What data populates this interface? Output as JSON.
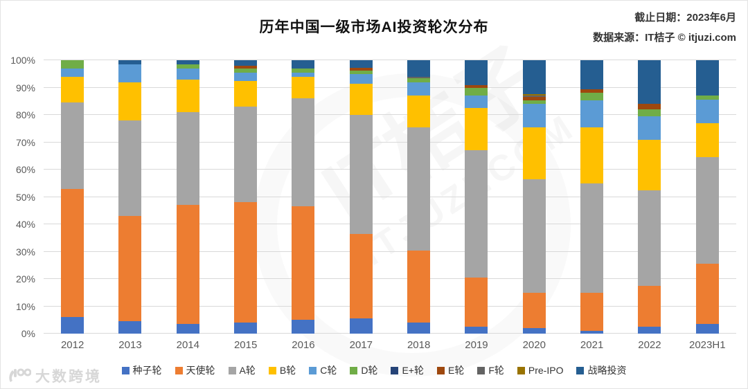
{
  "header": {
    "title": "历年中国一级市场AI投资轮次分布",
    "meta_line1": "截止日期：2023年6月",
    "meta_line2": "数据来源：IT桔子 © itjuzi.com"
  },
  "watermark": {
    "center_line1": "IT桔子",
    "center_line2": "ITJUZI.COM",
    "bottom_left_brand": "大数跨境"
  },
  "chart_data": {
    "type": "bar",
    "subtype": "stacked-100-percent",
    "title": "历年中国一级市场AI投资轮次分布",
    "xlabel": "",
    "ylabel": "",
    "ylim": [
      0,
      100
    ],
    "grid": true,
    "legend_position": "bottom",
    "y_ticks": [
      "0%",
      "10%",
      "20%",
      "30%",
      "40%",
      "50%",
      "60%",
      "70%",
      "80%",
      "90%",
      "100%"
    ],
    "categories": [
      "2012",
      "2013",
      "2014",
      "2015",
      "2016",
      "2017",
      "2018",
      "2019",
      "2020",
      "2021",
      "2022",
      "2023H1"
    ],
    "series": [
      {
        "name": "种子轮",
        "color": "#4472C4",
        "values": [
          6,
          4.5,
          3.5,
          4,
          5,
          5.5,
          4,
          2.5,
          2,
          1,
          2.5,
          3.5
        ]
      },
      {
        "name": "天使轮",
        "color": "#ED7D31",
        "values": [
          47,
          38.5,
          43.5,
          44,
          41.5,
          31,
          26.5,
          18,
          13,
          14,
          15,
          22
        ]
      },
      {
        "name": "A轮",
        "color": "#A5A5A5",
        "values": [
          31.5,
          35,
          34,
          35,
          39.5,
          43.5,
          45,
          46.5,
          41.5,
          40,
          35,
          39
        ]
      },
      {
        "name": "B轮",
        "color": "#FFC000",
        "values": [
          9.5,
          14,
          12,
          9.5,
          8,
          11.5,
          11.5,
          15.5,
          19,
          20.5,
          18.5,
          12.5
        ]
      },
      {
        "name": "C轮",
        "color": "#5B9BD5",
        "values": [
          3,
          6.5,
          4,
          3,
          1.5,
          3.5,
          5,
          4.5,
          8.5,
          9.8,
          8.5,
          8.5
        ]
      },
      {
        "name": "D轮",
        "color": "#70AD47",
        "values": [
          3,
          0,
          1.5,
          1.5,
          1.5,
          1.2,
          1.3,
          3,
          1.3,
          2.9,
          2.5,
          1.5
        ]
      },
      {
        "name": "E+轮",
        "color": "#264478",
        "values": [
          0,
          0,
          0,
          0,
          0,
          0,
          0,
          0,
          0,
          0,
          0,
          0
        ]
      },
      {
        "name": "E轮",
        "color": "#9E480E",
        "values": [
          0,
          0,
          0,
          1,
          0,
          1,
          0,
          1,
          1.4,
          1.3,
          2,
          0
        ]
      },
      {
        "name": "F轮",
        "color": "#636363",
        "values": [
          0,
          0,
          0,
          0,
          0,
          0,
          0.7,
          0,
          0.4,
          0,
          0,
          0
        ]
      },
      {
        "name": "Pre-IPO",
        "color": "#997300",
        "values": [
          0,
          0,
          0,
          0,
          0,
          0,
          0,
          0,
          0.4,
          0,
          0,
          0
        ]
      },
      {
        "name": "战略投资",
        "color": "#255E91",
        "values": [
          0,
          1.5,
          1.5,
          2,
          3,
          2.8,
          6,
          9,
          12.5,
          10.5,
          16,
          13
        ]
      }
    ]
  }
}
